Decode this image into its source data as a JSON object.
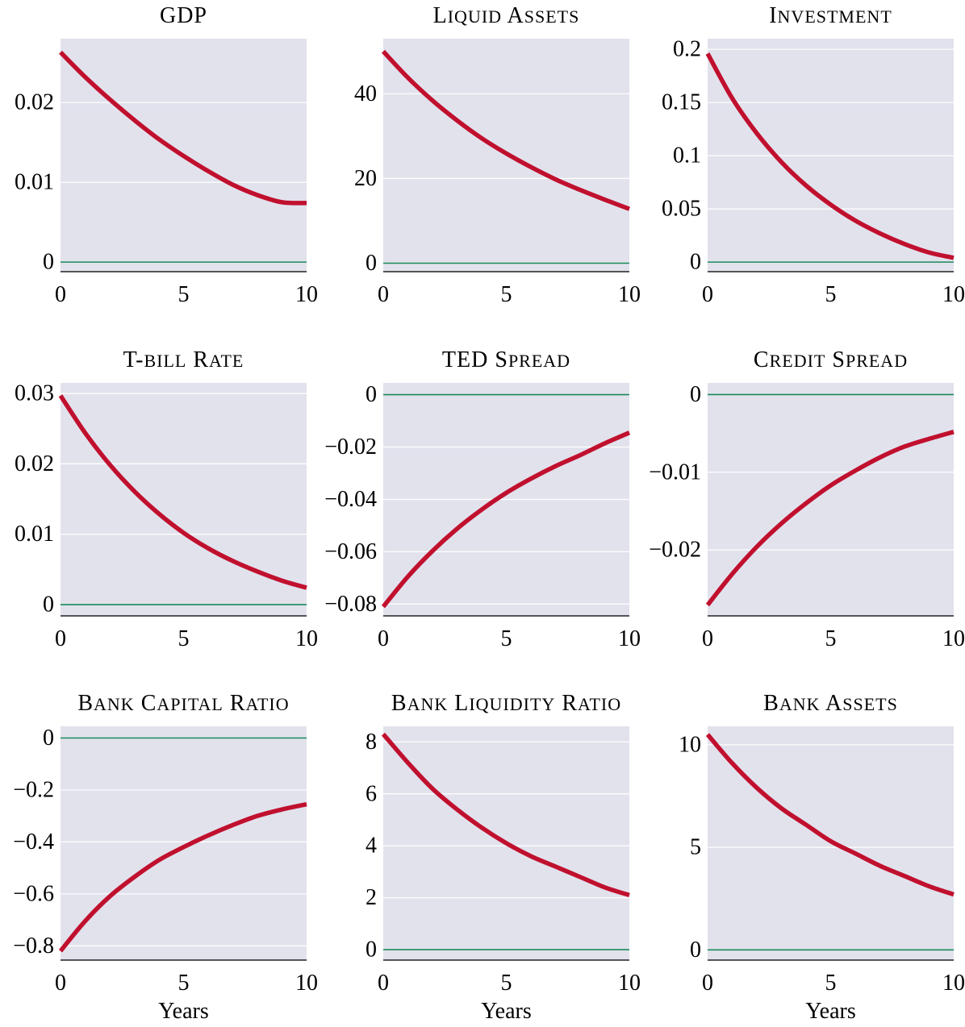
{
  "chart_data": [
    {
      "type": "line",
      "title": "GDP",
      "x": [
        0,
        1,
        2,
        3,
        4,
        5,
        6,
        7,
        8,
        9,
        10
      ],
      "y": [
        0.0263,
        0.0232,
        0.0204,
        0.0178,
        0.0154,
        0.0133,
        0.0114,
        0.0097,
        0.0084,
        0.0075,
        0.0074
      ],
      "xlim": [
        0,
        10
      ],
      "ylim": [
        -0.0012,
        0.028
      ],
      "xticks": [
        0,
        5,
        10
      ],
      "yticks": [
        0,
        0.01,
        0.02
      ],
      "ytick_labels": [
        "0",
        "0.01",
        "0.02"
      ],
      "xlabel": "",
      "grid": true
    },
    {
      "type": "line",
      "title": "Liquid assets",
      "x": [
        0,
        1,
        2,
        3,
        4,
        5,
        6,
        7,
        8,
        9,
        10
      ],
      "y": [
        50,
        43.8,
        38.4,
        33.7,
        29.5,
        25.9,
        22.7,
        19.8,
        17.3,
        15.0,
        12.8
      ],
      "xlim": [
        0,
        10
      ],
      "ylim": [
        -2,
        53
      ],
      "xticks": [
        0,
        5,
        10
      ],
      "yticks": [
        0,
        20,
        40
      ],
      "ytick_labels": [
        "0",
        "20",
        "40"
      ],
      "xlabel": "",
      "grid": true
    },
    {
      "type": "line",
      "title": "Investment",
      "x": [
        0,
        1,
        2,
        3,
        4,
        5,
        6,
        7,
        8,
        9,
        10
      ],
      "y": [
        0.196,
        0.154,
        0.121,
        0.094,
        0.072,
        0.054,
        0.039,
        0.027,
        0.017,
        0.009,
        0.004
      ],
      "xlim": [
        0,
        10
      ],
      "ylim": [
        -0.009,
        0.21
      ],
      "xticks": [
        0,
        5,
        10
      ],
      "yticks": [
        0,
        0.05,
        0.1,
        0.15,
        0.2
      ],
      "ytick_labels": [
        "0",
        "0.05",
        "0.1",
        "0.15",
        "0.2"
      ],
      "xlabel": "",
      "grid": true
    },
    {
      "type": "line",
      "title": "T-bill rate",
      "x": [
        0,
        1,
        2,
        3,
        4,
        5,
        6,
        7,
        8,
        9,
        10
      ],
      "y": [
        0.0297,
        0.0244,
        0.0199,
        0.0161,
        0.0129,
        0.0102,
        0.008,
        0.0062,
        0.0047,
        0.0034,
        0.0024
      ],
      "xlim": [
        0,
        10
      ],
      "ylim": [
        -0.0016,
        0.0315
      ],
      "xticks": [
        0,
        5,
        10
      ],
      "yticks": [
        0,
        0.01,
        0.02,
        0.03
      ],
      "ytick_labels": [
        "0",
        "0.01",
        "0.02",
        "0.03"
      ],
      "xlabel": "",
      "grid": true
    },
    {
      "type": "line",
      "title": "TED spread",
      "x": [
        0,
        1,
        2,
        3,
        4,
        5,
        6,
        7,
        8,
        9,
        10
      ],
      "y": [
        -0.081,
        -0.0695,
        -0.0597,
        -0.0512,
        -0.0439,
        -0.0375,
        -0.0321,
        -0.0273,
        -0.0231,
        -0.0186,
        -0.0145
      ],
      "xlim": [
        0,
        10
      ],
      "ylim": [
        -0.0845,
        0.0045
      ],
      "xticks": [
        0,
        5,
        10
      ],
      "yticks": [
        -0.08,
        -0.06,
        -0.04,
        -0.02,
        0
      ],
      "ytick_labels": [
        "−0.08",
        "−0.06",
        "−0.04",
        "−0.02",
        "0"
      ],
      "xlabel": "",
      "grid": true
    },
    {
      "type": "line",
      "title": "Credit spread",
      "x": [
        0,
        1,
        2,
        3,
        4,
        5,
        6,
        7,
        8,
        9,
        10
      ],
      "y": [
        -0.0271,
        -0.0231,
        -0.0196,
        -0.0166,
        -0.014,
        -0.0117,
        -0.0098,
        -0.0081,
        -0.0067,
        -0.0057,
        -0.0048
      ],
      "xlim": [
        0,
        10
      ],
      "ylim": [
        -0.0285,
        0.0015
      ],
      "xticks": [
        0,
        5,
        10
      ],
      "yticks": [
        -0.02,
        -0.01,
        0
      ],
      "ytick_labels": [
        "−0.02",
        "−0.01",
        "0"
      ],
      "xlabel": "",
      "grid": true
    },
    {
      "type": "line",
      "title": "Bank capital ratio",
      "x": [
        0,
        1,
        2,
        3,
        4,
        5,
        6,
        7,
        8,
        9,
        10
      ],
      "y": [
        -0.82,
        -0.705,
        -0.61,
        -0.535,
        -0.47,
        -0.42,
        -0.375,
        -0.335,
        -0.3,
        -0.275,
        -0.255
      ],
      "xlim": [
        0,
        10
      ],
      "ylim": [
        -0.855,
        0.045
      ],
      "xticks": [
        0,
        5,
        10
      ],
      "yticks": [
        -0.8,
        -0.6,
        -0.4,
        -0.2,
        0
      ],
      "ytick_labels": [
        "−0.8",
        "−0.6",
        "−0.4",
        "−0.2",
        "0"
      ],
      "xlabel": "Years",
      "grid": true
    },
    {
      "type": "line",
      "title": "Bank liquidity ratio",
      "x": [
        0,
        1,
        2,
        3,
        4,
        5,
        6,
        7,
        8,
        9,
        10
      ],
      "y": [
        8.3,
        7.2,
        6.2,
        5.4,
        4.7,
        4.1,
        3.6,
        3.2,
        2.8,
        2.4,
        2.1
      ],
      "xlim": [
        0,
        10
      ],
      "ylim": [
        -0.4,
        8.6
      ],
      "xticks": [
        0,
        5,
        10
      ],
      "yticks": [
        0,
        2,
        4,
        6,
        8
      ],
      "ytick_labels": [
        "0",
        "2",
        "4",
        "6",
        "8"
      ],
      "xlabel": "Years",
      "grid": true
    },
    {
      "type": "line",
      "title": "Bank assets",
      "x": [
        0,
        1,
        2,
        3,
        4,
        5,
        6,
        7,
        8,
        9,
        10
      ],
      "y": [
        10.5,
        9.1,
        7.9,
        6.9,
        6.1,
        5.3,
        4.7,
        4.1,
        3.6,
        3.1,
        2.7
      ],
      "xlim": [
        0,
        10
      ],
      "ylim": [
        -0.5,
        10.9
      ],
      "xticks": [
        0,
        5,
        10
      ],
      "yticks": [
        0,
        5,
        10
      ],
      "ytick_labels": [
        "0",
        "5",
        "10"
      ],
      "xlabel": "Years",
      "grid": true
    }
  ],
  "colors": {
    "panel_background": "#e2e2ed",
    "series": "#c0102e",
    "zero_line": "#1a8a5a",
    "grid": "#ffffff"
  }
}
